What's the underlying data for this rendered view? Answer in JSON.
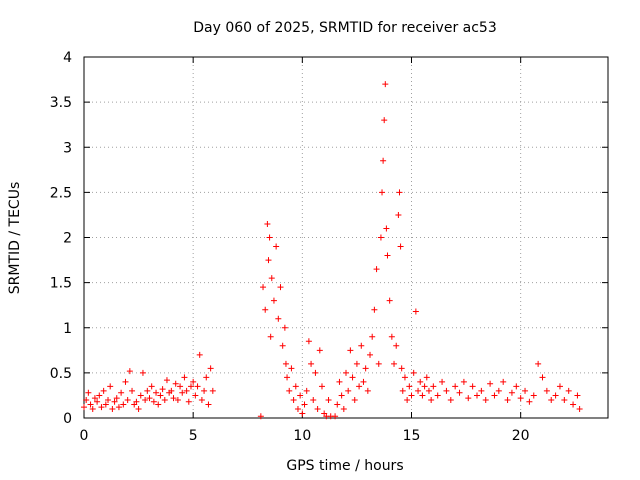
{
  "chart_data": {
    "type": "scatter",
    "title": "Day 060 of 2025, SRMTID for receiver ac53",
    "xlabel": "GPS time / hours",
    "ylabel": "SRMTID / TECUs",
    "xlim": [
      0,
      24
    ],
    "ylim": [
      0,
      4
    ],
    "xticks": [
      0,
      5,
      10,
      15,
      20
    ],
    "xtick_labels": [
      "0",
      "5",
      "10",
      "15",
      "20"
    ],
    "yticks": [
      0,
      0.5,
      1,
      1.5,
      2,
      2.5,
      3,
      3.5,
      4
    ],
    "ytick_labels": [
      "0",
      "0.5",
      "1",
      "1.5",
      "2",
      "2.5",
      "3",
      "3.5",
      "4"
    ],
    "grid": true,
    "marker": "+",
    "color": "#ff0000",
    "series": [
      {
        "name": "SRMTID",
        "points": [
          [
            0.0,
            0.12
          ],
          [
            0.1,
            0.2
          ],
          [
            0.2,
            0.28
          ],
          [
            0.3,
            0.15
          ],
          [
            0.4,
            0.1
          ],
          [
            0.5,
            0.22
          ],
          [
            0.6,
            0.18
          ],
          [
            0.7,
            0.25
          ],
          [
            0.8,
            0.12
          ],
          [
            0.9,
            0.3
          ],
          [
            1.0,
            0.15
          ],
          [
            1.1,
            0.2
          ],
          [
            1.2,
            0.35
          ],
          [
            1.3,
            0.1
          ],
          [
            1.4,
            0.18
          ],
          [
            1.5,
            0.22
          ],
          [
            1.6,
            0.12
          ],
          [
            1.7,
            0.28
          ],
          [
            1.8,
            0.15
          ],
          [
            1.9,
            0.4
          ],
          [
            2.0,
            0.2
          ],
          [
            2.1,
            0.52
          ],
          [
            2.2,
            0.3
          ],
          [
            2.3,
            0.15
          ],
          [
            2.4,
            0.18
          ],
          [
            2.5,
            0.1
          ],
          [
            2.6,
            0.25
          ],
          [
            2.7,
            0.5
          ],
          [
            2.8,
            0.2
          ],
          [
            2.9,
            0.3
          ],
          [
            3.0,
            0.22
          ],
          [
            3.1,
            0.35
          ],
          [
            3.2,
            0.18
          ],
          [
            3.3,
            0.28
          ],
          [
            3.4,
            0.15
          ],
          [
            3.5,
            0.25
          ],
          [
            3.6,
            0.32
          ],
          [
            3.7,
            0.2
          ],
          [
            3.8,
            0.42
          ],
          [
            3.9,
            0.28
          ],
          [
            4.0,
            0.3
          ],
          [
            4.1,
            0.22
          ],
          [
            4.2,
            0.38
          ],
          [
            4.3,
            0.2
          ],
          [
            4.4,
            0.35
          ],
          [
            4.5,
            0.28
          ],
          [
            4.6,
            0.45
          ],
          [
            4.7,
            0.3
          ],
          [
            4.8,
            0.18
          ],
          [
            4.9,
            0.35
          ],
          [
            5.0,
            0.4
          ],
          [
            5.1,
            0.25
          ],
          [
            5.2,
            0.35
          ],
          [
            5.3,
            0.7
          ],
          [
            5.4,
            0.2
          ],
          [
            5.5,
            0.3
          ],
          [
            5.6,
            0.45
          ],
          [
            5.7,
            0.15
          ],
          [
            5.8,
            0.55
          ],
          [
            5.9,
            0.3
          ],
          [
            8.1,
            0.02
          ],
          [
            8.2,
            1.45
          ],
          [
            8.3,
            1.2
          ],
          [
            8.4,
            2.15
          ],
          [
            8.45,
            1.75
          ],
          [
            8.5,
            2.0
          ],
          [
            8.55,
            0.9
          ],
          [
            8.6,
            1.55
          ],
          [
            8.7,
            1.3
          ],
          [
            8.8,
            1.9
          ],
          [
            8.9,
            1.1
          ],
          [
            9.0,
            1.45
          ],
          [
            9.1,
            0.8
          ],
          [
            9.2,
            1.0
          ],
          [
            9.25,
            0.6
          ],
          [
            9.3,
            0.45
          ],
          [
            9.4,
            0.3
          ],
          [
            9.5,
            0.55
          ],
          [
            9.6,
            0.2
          ],
          [
            9.7,
            0.35
          ],
          [
            9.8,
            0.1
          ],
          [
            9.9,
            0.25
          ],
          [
            10.0,
            0.05
          ],
          [
            10.1,
            0.15
          ],
          [
            10.2,
            0.3
          ],
          [
            10.3,
            0.85
          ],
          [
            10.4,
            0.6
          ],
          [
            10.5,
            0.2
          ],
          [
            10.6,
            0.5
          ],
          [
            10.7,
            0.1
          ],
          [
            10.8,
            0.75
          ],
          [
            10.9,
            0.35
          ],
          [
            11.0,
            0.05
          ],
          [
            11.1,
            0.02
          ],
          [
            11.2,
            0.2
          ],
          [
            11.3,
            0.02
          ],
          [
            11.5,
            0.02
          ],
          [
            11.6,
            0.15
          ],
          [
            11.7,
            0.4
          ],
          [
            11.8,
            0.25
          ],
          [
            11.9,
            0.1
          ],
          [
            12.0,
            0.5
          ],
          [
            12.1,
            0.3
          ],
          [
            12.2,
            0.75
          ],
          [
            12.3,
            0.45
          ],
          [
            12.4,
            0.2
          ],
          [
            12.5,
            0.6
          ],
          [
            12.6,
            0.35
          ],
          [
            12.7,
            0.8
          ],
          [
            12.8,
            0.4
          ],
          [
            12.9,
            0.55
          ],
          [
            13.0,
            0.3
          ],
          [
            13.1,
            0.7
          ],
          [
            13.2,
            0.9
          ],
          [
            13.3,
            1.2
          ],
          [
            13.4,
            1.65
          ],
          [
            13.5,
            0.6
          ],
          [
            13.6,
            2.0
          ],
          [
            13.65,
            2.5
          ],
          [
            13.7,
            2.85
          ],
          [
            13.75,
            3.3
          ],
          [
            13.8,
            3.7
          ],
          [
            13.85,
            2.1
          ],
          [
            13.9,
            1.8
          ],
          [
            14.0,
            1.3
          ],
          [
            14.1,
            0.9
          ],
          [
            14.2,
            0.6
          ],
          [
            14.3,
            0.8
          ],
          [
            14.4,
            2.25
          ],
          [
            14.45,
            2.5
          ],
          [
            14.5,
            1.9
          ],
          [
            14.55,
            0.55
          ],
          [
            14.6,
            0.3
          ],
          [
            14.7,
            0.45
          ],
          [
            14.8,
            0.2
          ],
          [
            14.9,
            0.35
          ],
          [
            15.0,
            0.25
          ],
          [
            15.1,
            0.5
          ],
          [
            15.2,
            1.18
          ],
          [
            15.3,
            0.3
          ],
          [
            15.4,
            0.4
          ],
          [
            15.5,
            0.25
          ],
          [
            15.6,
            0.35
          ],
          [
            15.7,
            0.45
          ],
          [
            15.8,
            0.3
          ],
          [
            15.9,
            0.2
          ],
          [
            16.0,
            0.35
          ],
          [
            16.2,
            0.25
          ],
          [
            16.4,
            0.4
          ],
          [
            16.6,
            0.3
          ],
          [
            16.8,
            0.2
          ],
          [
            17.0,
            0.35
          ],
          [
            17.2,
            0.28
          ],
          [
            17.4,
            0.4
          ],
          [
            17.6,
            0.22
          ],
          [
            17.8,
            0.35
          ],
          [
            18.0,
            0.25
          ],
          [
            18.2,
            0.3
          ],
          [
            18.4,
            0.2
          ],
          [
            18.6,
            0.38
          ],
          [
            18.8,
            0.25
          ],
          [
            19.0,
            0.3
          ],
          [
            19.2,
            0.4
          ],
          [
            19.4,
            0.2
          ],
          [
            19.6,
            0.28
          ],
          [
            19.8,
            0.35
          ],
          [
            20.0,
            0.22
          ],
          [
            20.2,
            0.3
          ],
          [
            20.4,
            0.18
          ],
          [
            20.6,
            0.25
          ],
          [
            20.8,
            0.6
          ],
          [
            21.0,
            0.45
          ],
          [
            21.2,
            0.3
          ],
          [
            21.4,
            0.2
          ],
          [
            21.6,
            0.25
          ],
          [
            21.8,
            0.35
          ],
          [
            22.0,
            0.2
          ],
          [
            22.2,
            0.3
          ],
          [
            22.4,
            0.15
          ],
          [
            22.6,
            0.25
          ],
          [
            22.7,
            0.1
          ]
        ]
      }
    ]
  }
}
